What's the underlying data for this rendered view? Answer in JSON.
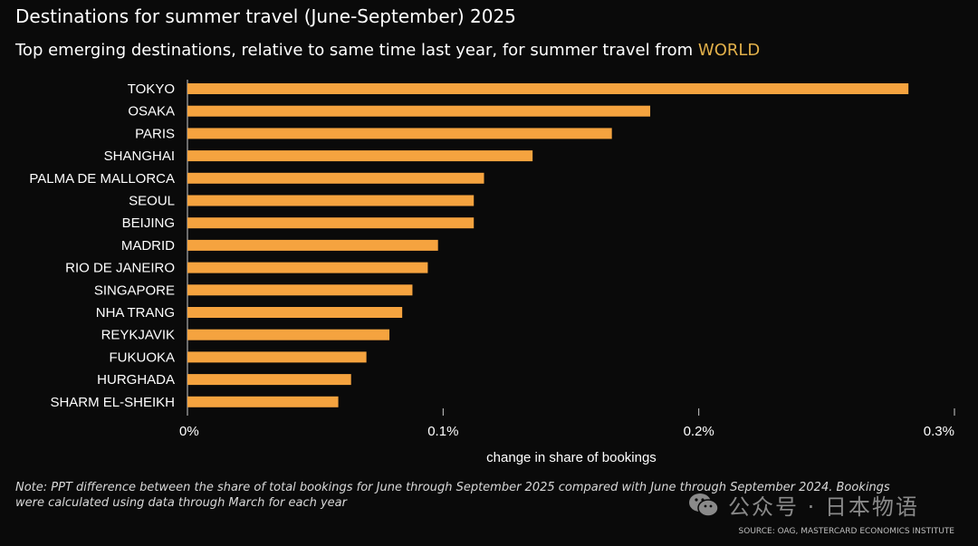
{
  "header": {
    "title": "Destinations for summer travel (June-September) 2025",
    "subtitle_prefix": "Top emerging destinations, relative to same time last year, for summer travel from ",
    "subtitle_highlight": "WORLD"
  },
  "colors": {
    "bar": "#f5a33f",
    "highlight": "#e2b04a",
    "background": "#0a0a0a"
  },
  "chart_data": {
    "type": "bar",
    "orientation": "horizontal",
    "categories": [
      "TOKYO",
      "OSAKA",
      "PARIS",
      "SHANGHAI",
      "PALMA DE MALLORCA",
      "SEOUL",
      "BEIJING",
      "MADRID",
      "RIO DE JANEIRO",
      "SINGAPORE",
      "NHA TRANG",
      "REYKJAVIK",
      "FUKUOKA",
      "HURGHADA",
      "SHARM EL-SHEIKH"
    ],
    "values": [
      0.282,
      0.181,
      0.166,
      0.135,
      0.116,
      0.112,
      0.112,
      0.098,
      0.094,
      0.088,
      0.084,
      0.079,
      0.07,
      0.064,
      0.059
    ],
    "xlabel": "change in share of bookings",
    "ylabel": "",
    "xlim": [
      0,
      0.3
    ],
    "xticks": [
      0,
      0.1,
      0.2,
      0.3
    ],
    "xtick_labels": [
      "0%",
      "0.1%",
      "0.2%",
      "0.3%"
    ],
    "unit": "%",
    "grid": false
  },
  "footer": {
    "note": "Note: PPT difference between the share of total bookings for June through September 2025 compared with June through September 2024. Bookings were calculated using data through March for each year",
    "source": "SOURCE: OAG, MASTERCARD ECONOMICS INSTITUTE",
    "watermark": "公众号 · 日本物语"
  }
}
